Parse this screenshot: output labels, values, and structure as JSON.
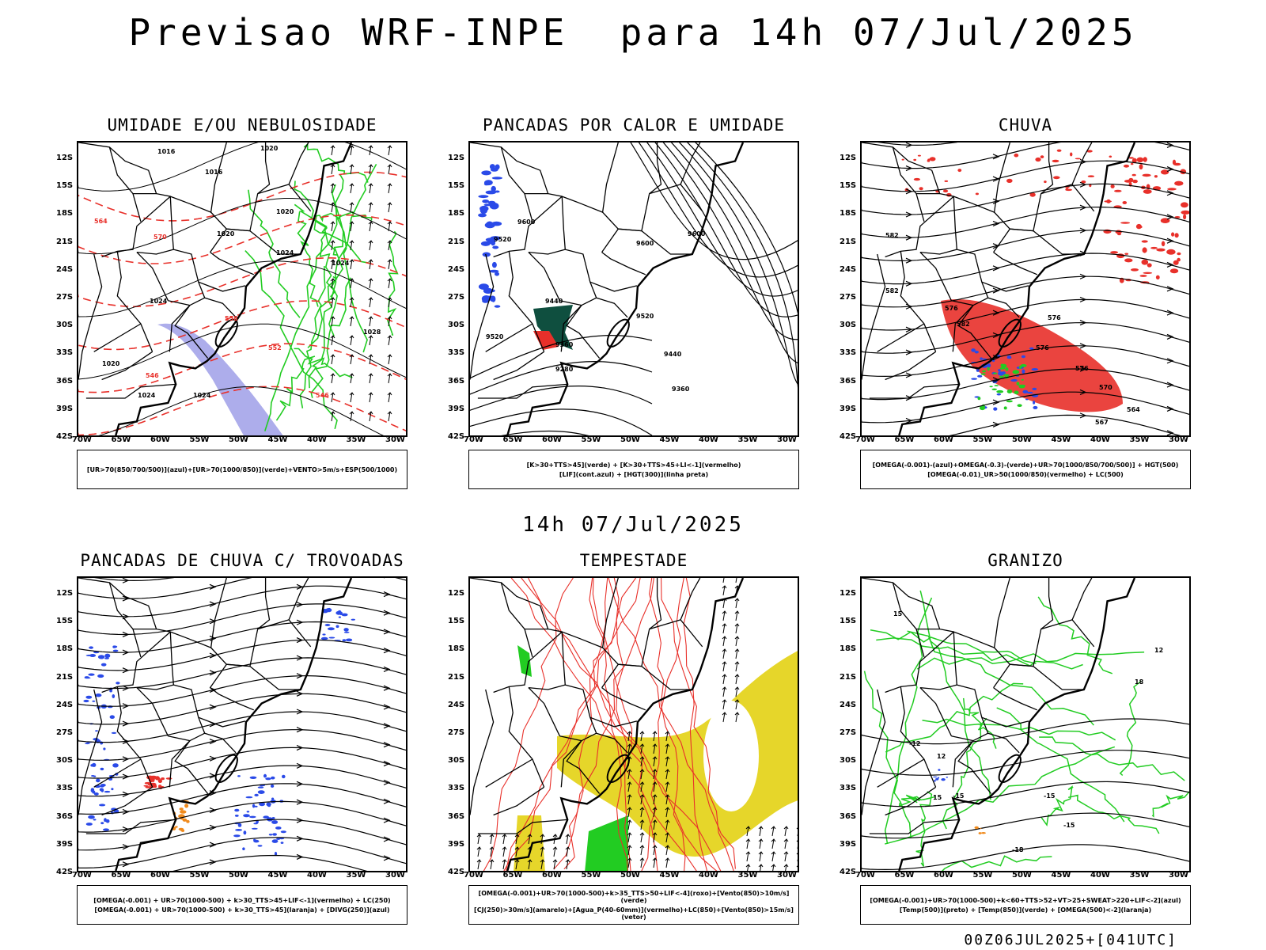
{
  "title": "Previsao WRF-INPE  para 14h 07/Jul/2025",
  "mid_label": "14h 07/Jul/2025",
  "footer": "00Z06JUL2025+[041UTC]",
  "lat_labels": [
    "12S",
    "15S",
    "18S",
    "21S",
    "24S",
    "27S",
    "30S",
    "33S",
    "36S",
    "39S",
    "42S"
  ],
  "lon_labels": [
    "70W",
    "65W",
    "60W",
    "55W",
    "50W",
    "45W",
    "40W",
    "35W",
    "30W"
  ],
  "colors": {
    "red": "#e8302a",
    "green": "#22cc22",
    "blue": "#2a4ae8",
    "purple": "#9f9fe8",
    "yellow": "#e6d62a",
    "orange": "#f08a1c",
    "darkgreen": "#0f4f3f"
  },
  "panels": [
    {
      "title": "UMIDADE E/OU NEBULOSIDADE",
      "legend": [
        "[UR>70(850/700/500)](azul)+[UR>70(1000/850)](verde)+VENTO>5m/s+ESP(500/1000)"
      ],
      "contour_labels": [
        "1016",
        "1016",
        "1020",
        "1020",
        "1020",
        "1024",
        "1024",
        "1020",
        "1024",
        "1024",
        "1024",
        "1028",
        "570",
        "564",
        "558",
        "552",
        "546",
        "546"
      ]
    },
    {
      "title": "PANCADAS POR CALOR E UMIDADE",
      "legend": [
        "[K>30+TTS>45](verde) + [K>30+TTS>45+LI<-1](vermelho)",
        "[LIF](cont.azul) + [HGT(300)](linha preta)"
      ],
      "contour_labels": [
        "9600",
        "9520",
        "9440",
        "9520",
        "9360",
        "9280",
        "9600",
        "9600",
        "9520",
        "9440",
        "9360"
      ]
    },
    {
      "title": "CHUVA",
      "legend": [
        "[OMEGA(-0.001)-(azul)+OMEGA(-0.3)-(verde)+UR>70(1000/850/700/500)] + HGT(500)",
        "[OMEGA(-0.01)_UR>50(1000/850)(vermelho) + LC(500)"
      ],
      "contour_labels": [
        "582",
        "582",
        "576",
        "576",
        "582",
        "576",
        "576",
        "570",
        "564",
        "567"
      ]
    },
    {
      "title": "PANCADAS DE CHUVA C/ TROVOADAS",
      "legend": [
        "[OMEGA(-0.001) + UR>70(1000-500) + k>30_TTS>45+LIF<-1](vermelho) + LC(250)",
        "[OMEGA(-0.001) + UR>70(1000-500) + k>30_TTS>45](laranja) + [DIVG(250)](azul)"
      ],
      "contour_labels": []
    },
    {
      "title": "TEMPESTADE",
      "legend": [
        "[OMEGA(-0.001)+UR>70(1000-500)+k>35_TTS>50+LIF<-4](roxo)+[Vento(850)>10m/s](verde)",
        "[CJ(250)>30m/s](amarelo)+[Agua_P(40-60mm)](vermelho)+LC(850)+[Vento(850)>15m/s](vetor)"
      ],
      "contour_labels": []
    },
    {
      "title": "GRANIZO",
      "legend": [
        "[OMEGA(-0.001)+UR>70(1000-500)+k<60+TTS>52+VT>25+SWEAT>220+LIF<-2](azul)",
        "[Temp(500)](preto) + [Temp(850)](verde) + [OMEGA(500)<-2](laranja)"
      ],
      "contour_labels": [
        "-12",
        "-15",
        "-15",
        "-15",
        "-18",
        "12",
        "15",
        "12",
        "18",
        "15"
      ]
    }
  ]
}
